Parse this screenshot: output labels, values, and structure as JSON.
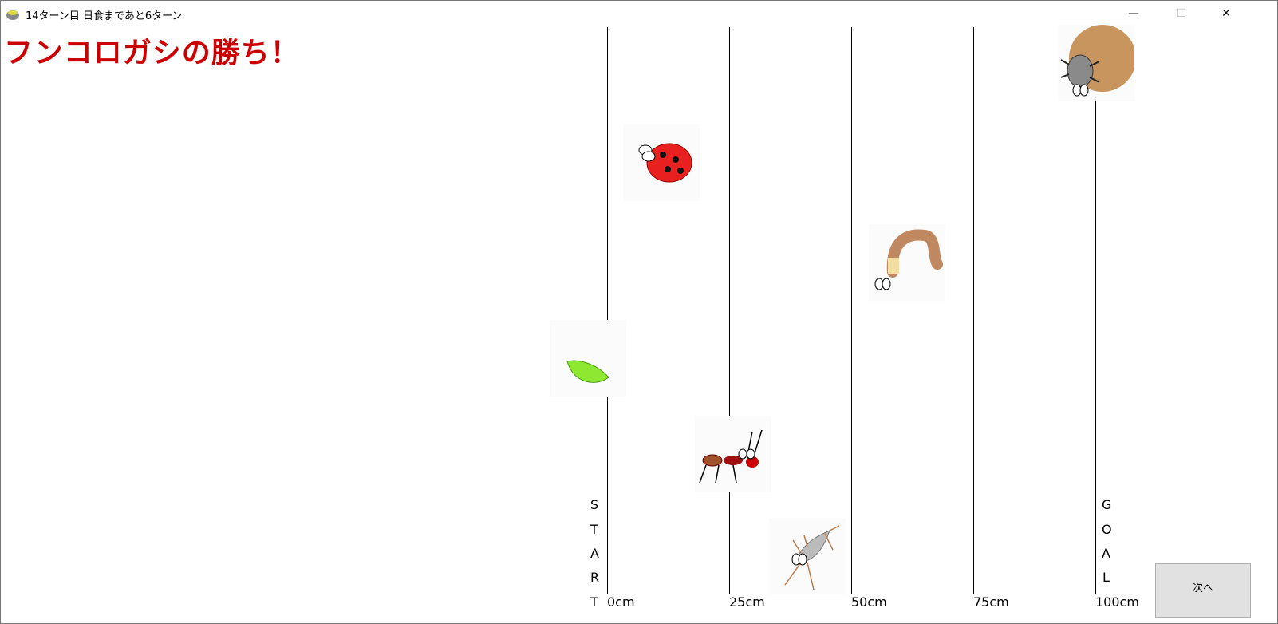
{
  "window": {
    "title": "14ターン目 日食まであと6ターン",
    "minimize": "—",
    "maximize": "☐",
    "close": "✕"
  },
  "headline": "フンコロガシの勝ち！",
  "track": {
    "start_letters": [
      "S",
      "T",
      "A",
      "R",
      "T"
    ],
    "goal_letters": [
      "G",
      "O",
      "A",
      "L"
    ],
    "ticks": [
      "0cm",
      "25cm",
      "50cm",
      "75cm",
      "100cm"
    ]
  },
  "next_button": "次へ",
  "colors": {
    "headline": "#cc0000",
    "button": "#e1e1e1"
  }
}
